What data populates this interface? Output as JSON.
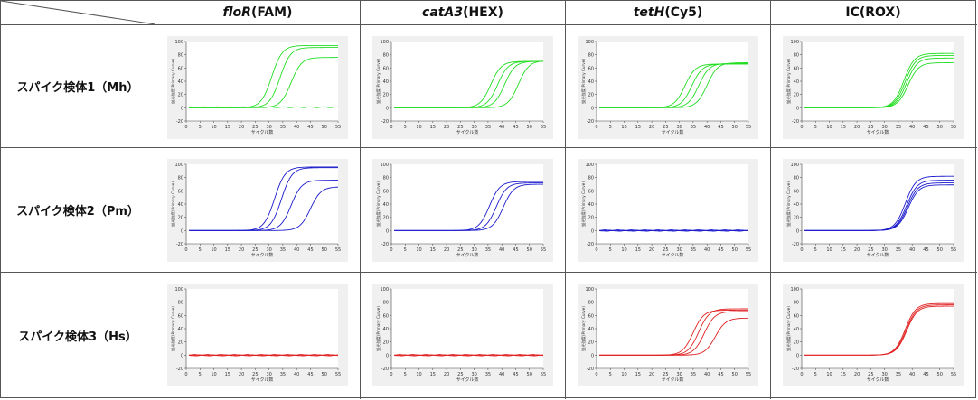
{
  "header": {
    "columns": [
      {
        "gene": "floR",
        "dye": "(FAM)"
      },
      {
        "gene": "catA3",
        "dye": "(HEX)"
      },
      {
        "gene": "tetH",
        "dye": "(Cy5)"
      },
      {
        "gene": "",
        "dye": "IC(ROX)"
      }
    ]
  },
  "rows": [
    {
      "label": "スパイク検体1（Mh）",
      "color": "#22dd22"
    },
    {
      "label": "スパイク検体2（Pm）",
      "color": "#1a1acc"
    },
    {
      "label": "スパイク検体3（Hs）",
      "color": "#e02020"
    }
  ],
  "axis": {
    "xlabel": "サイクル数",
    "ylabel": "蛍光強度(Primary Curve)",
    "xlim": [
      0,
      55
    ],
    "ylim": [
      -20,
      100
    ],
    "xticks": [
      0,
      5,
      10,
      15,
      20,
      25,
      30,
      35,
      40,
      45,
      50,
      55
    ],
    "yticks": [
      -20,
      0,
      20,
      40,
      60,
      80,
      100
    ]
  },
  "chart_data": [
    {
      "type": "line",
      "row": 0,
      "col": 0,
      "xlabel": "サイクル数",
      "ylabel": "蛍光強度(Primary Curve)",
      "xlim": [
        0,
        55
      ],
      "ylim": [
        -20,
        100
      ],
      "curves": [
        {
          "plateau": 94,
          "midpoint": 31
        },
        {
          "plateau": 91,
          "midpoint": 34
        },
        {
          "plateau": 76,
          "midpoint": 38
        },
        {
          "plateau": 0,
          "midpoint": 0
        }
      ]
    },
    {
      "type": "line",
      "row": 0,
      "col": 1,
      "xlabel": "サイクル数",
      "ylabel": "蛍光強度(Primary Curve)",
      "xlim": [
        0,
        55
      ],
      "ylim": [
        -20,
        100
      ],
      "curves": [
        {
          "plateau": 70,
          "midpoint": 36
        },
        {
          "plateau": 70,
          "midpoint": 38.5
        },
        {
          "plateau": 70,
          "midpoint": 41
        },
        {
          "plateau": 71,
          "midpoint": 46
        }
      ]
    },
    {
      "type": "line",
      "row": 0,
      "col": 2,
      "xlabel": "サイクル数",
      "ylabel": "蛍光強度(Primary Curve)",
      "xlim": [
        0,
        55
      ],
      "ylim": [
        -20,
        100
      ],
      "curves": [
        {
          "plateau": 66,
          "midpoint": 32
        },
        {
          "plateau": 66,
          "midpoint": 34.5
        },
        {
          "plateau": 67,
          "midpoint": 37
        },
        {
          "plateau": 68,
          "midpoint": 40
        }
      ]
    },
    {
      "type": "line",
      "row": 0,
      "col": 3,
      "xlabel": "サイクル数",
      "ylabel": "蛍光強度(Primary Curve)",
      "xlim": [
        0,
        55
      ],
      "ylim": [
        -20,
        100
      ],
      "curves": [
        {
          "plateau": 82,
          "midpoint": 37
        },
        {
          "plateau": 79,
          "midpoint": 37.5
        },
        {
          "plateau": 75,
          "midpoint": 38
        },
        {
          "plateau": 68,
          "midpoint": 38.5
        }
      ]
    },
    {
      "type": "line",
      "row": 1,
      "col": 0,
      "xlabel": "サイクル数",
      "ylabel": "蛍光強度(Primary Curve)",
      "xlim": [
        0,
        55
      ],
      "ylim": [
        -20,
        100
      ],
      "curves": [
        {
          "plateau": 96,
          "midpoint": 32
        },
        {
          "plateau": 95,
          "midpoint": 34.5
        },
        {
          "plateau": 76,
          "midpoint": 38
        },
        {
          "plateau": 66,
          "midpoint": 45
        }
      ]
    },
    {
      "type": "line",
      "row": 1,
      "col": 1,
      "xlabel": "サイクル数",
      "ylabel": "蛍光強度(Primary Curve)",
      "xlim": [
        0,
        55
      ],
      "ylim": [
        -20,
        100
      ],
      "curves": [
        {
          "plateau": 74,
          "midpoint": 35.5
        },
        {
          "plateau": 72,
          "midpoint": 38
        },
        {
          "plateau": 70,
          "midpoint": 40.5
        }
      ]
    },
    {
      "type": "line",
      "row": 1,
      "col": 2,
      "xlabel": "サイクル数",
      "ylabel": "蛍光強度(Primary Curve)",
      "xlim": [
        0,
        55
      ],
      "ylim": [
        -20,
        100
      ],
      "curves": [
        {
          "plateau": 0,
          "midpoint": 0
        },
        {
          "plateau": 0,
          "midpoint": 0
        },
        {
          "plateau": 0,
          "midpoint": 0
        }
      ]
    },
    {
      "type": "line",
      "row": 1,
      "col": 3,
      "xlabel": "サイクル数",
      "ylabel": "蛍光強度(Primary Curve)",
      "xlim": [
        0,
        55
      ],
      "ylim": [
        -20,
        100
      ],
      "curves": [
        {
          "plateau": 82,
          "midpoint": 37.5
        },
        {
          "plateau": 76,
          "midpoint": 38
        },
        {
          "plateau": 72,
          "midpoint": 38.3
        },
        {
          "plateau": 69,
          "midpoint": 38.6
        }
      ]
    },
    {
      "type": "line",
      "row": 2,
      "col": 0,
      "xlabel": "サイクル数",
      "ylabel": "蛍光強度(Primary Curve)",
      "xlim": [
        0,
        55
      ],
      "ylim": [
        -20,
        100
      ],
      "curves": [
        {
          "plateau": 0,
          "midpoint": 0
        },
        {
          "plateau": 0,
          "midpoint": 0
        },
        {
          "plateau": 0,
          "midpoint": 0
        }
      ]
    },
    {
      "type": "line",
      "row": 2,
      "col": 1,
      "xlabel": "サイクル数",
      "ylabel": "蛍光強度(Primary Curve)",
      "xlim": [
        0,
        55
      ],
      "ylim": [
        -20,
        100
      ],
      "curves": [
        {
          "plateau": 0,
          "midpoint": 0
        },
        {
          "plateau": 0,
          "midpoint": 0
        },
        {
          "plateau": 0,
          "midpoint": 0
        }
      ]
    },
    {
      "type": "line",
      "row": 2,
      "col": 2,
      "xlabel": "サイクル数",
      "ylabel": "蛍光強度(Primary Curve)",
      "xlim": [
        0,
        55
      ],
      "ylim": [
        -20,
        100
      ],
      "curves": [
        {
          "plateau": 68,
          "midpoint": 35
        },
        {
          "plateau": 70,
          "midpoint": 37
        },
        {
          "plateau": 66,
          "midpoint": 39
        },
        {
          "plateau": 56,
          "midpoint": 43
        }
      ]
    },
    {
      "type": "line",
      "row": 2,
      "col": 3,
      "xlabel": "サイクル数",
      "ylabel": "蛍光強度(Primary Curve)",
      "xlim": [
        0,
        55
      ],
      "ylim": [
        -20,
        100
      ],
      "curves": [
        {
          "plateau": 78,
          "midpoint": 37.5
        },
        {
          "plateau": 76,
          "midpoint": 37.8
        },
        {
          "plateau": 74,
          "midpoint": 38
        }
      ]
    }
  ]
}
